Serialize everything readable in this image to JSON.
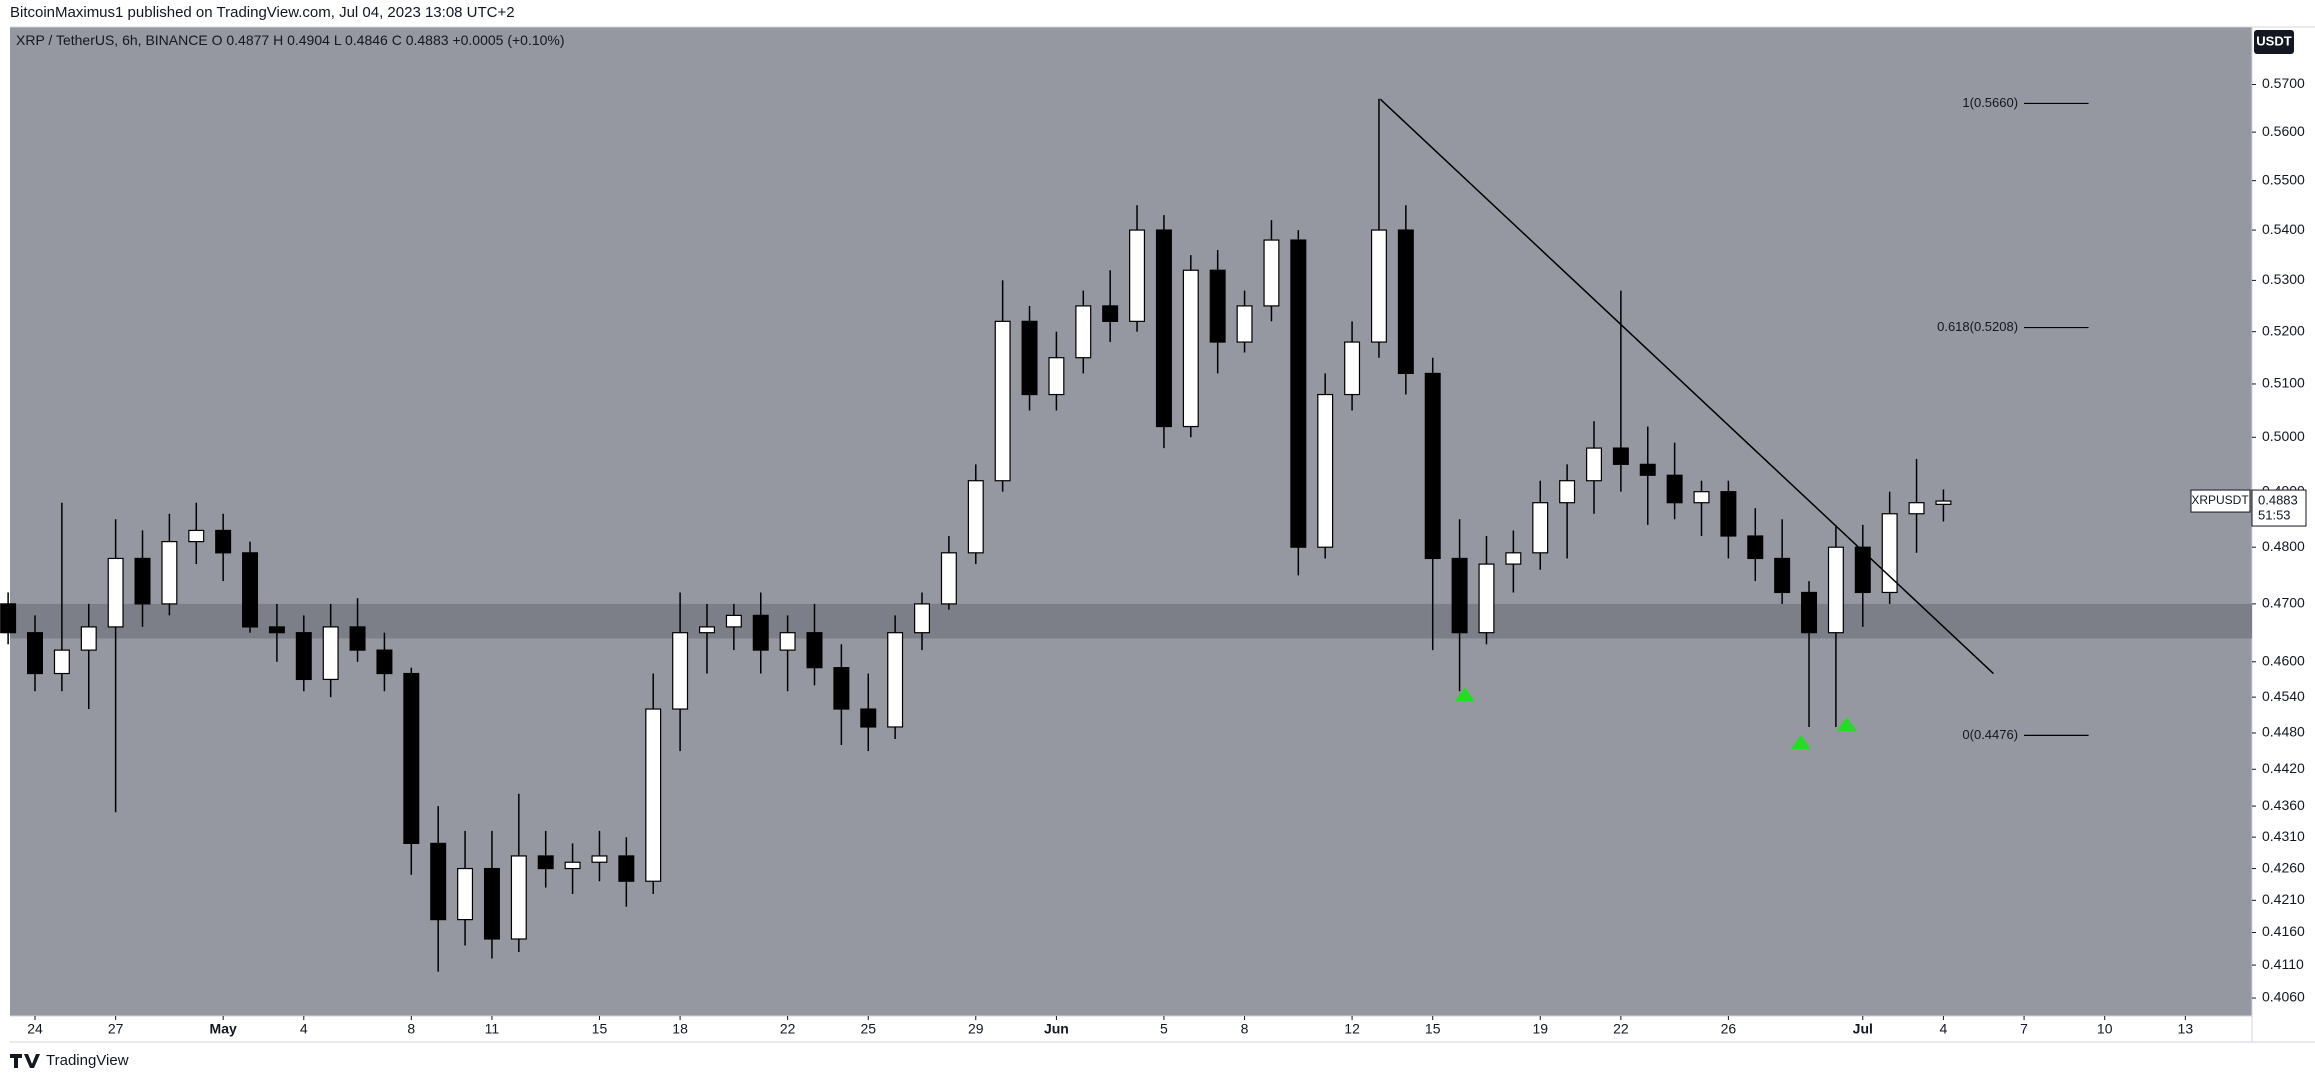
{
  "header": {
    "text": "BitcoinMaximus1 published on TradingView.com, Jul 04, 2023 13:08 UTC+2"
  },
  "footer": {
    "brand": "TradingView"
  },
  "chart_data": {
    "type": "candlestick",
    "title": "XRP / TetherUS, 6h, BINANCE",
    "ohlc_legend": [
      {
        "key": "O",
        "value": 0.4877
      },
      {
        "key": "H",
        "value": 0.4904
      },
      {
        "key": "L",
        "value": 0.4846
      },
      {
        "key": "C",
        "value": 0.4883
      }
    ],
    "change": "+0.0005 (+0.10%)",
    "currency": "USDT",
    "symbol": "XRPUSDT",
    "last_price": 0.4883,
    "countdown": "51:53",
    "log": true,
    "grid": false,
    "background": "#9598a1",
    "up_color": "#ffffff",
    "down_color": "#000000",
    "x": [
      -1,
      0,
      1,
      2,
      3,
      4,
      5,
      6,
      7,
      8,
      9,
      10,
      11,
      12,
      13,
      14,
      15,
      16,
      17,
      18,
      19,
      20,
      21,
      22,
      23,
      24,
      25,
      26,
      27,
      28,
      29,
      30,
      31,
      32,
      33,
      34,
      35,
      36,
      37,
      38,
      39,
      40,
      41,
      42,
      43,
      44,
      45,
      46,
      47,
      48,
      49,
      50,
      51,
      52,
      53,
      54,
      55,
      56,
      57,
      58,
      59,
      60,
      61,
      62,
      63,
      64,
      65,
      66,
      67,
      68,
      69,
      70,
      71
    ],
    "open": [
      0.47,
      0.465,
      0.458,
      0.462,
      0.466,
      0.478,
      0.47,
      0.481,
      0.483,
      0.479,
      0.466,
      0.465,
      0.457,
      0.466,
      0.462,
      0.458,
      0.43,
      0.418,
      0.426,
      0.415,
      0.428,
      0.426,
      0.427,
      0.428,
      0.424,
      0.452,
      0.465,
      0.466,
      0.468,
      0.462,
      0.465,
      0.459,
      0.452,
      0.449,
      0.465,
      0.47,
      0.479,
      0.492,
      0.522,
      0.508,
      0.515,
      0.525,
      0.522,
      0.54,
      0.502,
      0.532,
      0.518,
      0.525,
      0.538,
      0.48,
      0.508,
      0.518,
      0.54,
      0.512,
      0.478,
      0.465,
      0.477,
      0.479,
      0.488,
      0.492,
      0.498,
      0.495,
      0.493,
      0.488,
      0.49,
      0.482,
      0.478,
      0.472,
      0.465,
      0.48,
      0.472,
      0.486,
      0.4877
    ],
    "high": [
      0.472,
      0.468,
      0.488,
      0.47,
      0.485,
      0.483,
      0.486,
      0.488,
      0.486,
      0.481,
      0.47,
      0.468,
      0.47,
      0.471,
      0.465,
      0.459,
      0.436,
      0.432,
      0.432,
      0.438,
      0.432,
      0.43,
      0.432,
      0.431,
      0.458,
      0.472,
      0.47,
      0.47,
      0.472,
      0.468,
      0.47,
      0.463,
      0.458,
      0.468,
      0.472,
      0.482,
      0.495,
      0.53,
      0.525,
      0.52,
      0.528,
      0.532,
      0.545,
      0.543,
      0.535,
      0.536,
      0.528,
      0.542,
      0.54,
      0.512,
      0.522,
      0.567,
      0.545,
      0.515,
      0.485,
      0.482,
      0.483,
      0.492,
      0.495,
      0.503,
      0.528,
      0.502,
      0.499,
      0.492,
      0.492,
      0.487,
      0.485,
      0.474,
      0.484,
      0.484,
      0.49,
      0.496,
      0.4904
    ],
    "low": [
      0.463,
      0.455,
      0.455,
      0.452,
      0.435,
      0.466,
      0.468,
      0.477,
      0.474,
      0.465,
      0.46,
      0.455,
      0.454,
      0.46,
      0.455,
      0.425,
      0.41,
      0.414,
      0.412,
      0.413,
      0.423,
      0.422,
      0.424,
      0.42,
      0.422,
      0.445,
      0.458,
      0.462,
      0.458,
      0.455,
      0.456,
      0.446,
      0.445,
      0.447,
      0.462,
      0.469,
      0.477,
      0.49,
      0.505,
      0.505,
      0.512,
      0.518,
      0.52,
      0.498,
      0.5,
      0.512,
      0.516,
      0.522,
      0.475,
      0.478,
      0.505,
      0.515,
      0.508,
      0.462,
      0.455,
      0.463,
      0.472,
      0.476,
      0.478,
      0.486,
      0.49,
      0.484,
      0.485,
      0.482,
      0.478,
      0.474,
      0.47,
      0.449,
      0.449,
      0.466,
      0.47,
      0.479,
      0.4846
    ],
    "close": [
      0.465,
      0.458,
      0.462,
      0.466,
      0.478,
      0.47,
      0.481,
      0.483,
      0.479,
      0.466,
      0.465,
      0.457,
      0.466,
      0.462,
      0.458,
      0.43,
      0.418,
      0.426,
      0.415,
      0.428,
      0.426,
      0.427,
      0.428,
      0.424,
      0.452,
      0.465,
      0.466,
      0.468,
      0.462,
      0.465,
      0.459,
      0.452,
      0.449,
      0.465,
      0.47,
      0.479,
      0.492,
      0.522,
      0.508,
      0.515,
      0.525,
      0.522,
      0.54,
      0.502,
      0.532,
      0.518,
      0.525,
      0.538,
      0.48,
      0.508,
      0.518,
      0.54,
      0.512,
      0.478,
      0.465,
      0.477,
      0.479,
      0.488,
      0.492,
      0.498,
      0.495,
      0.493,
      0.488,
      0.49,
      0.482,
      0.478,
      0.472,
      0.465,
      0.48,
      0.472,
      0.486,
      0.488,
      0.4883
    ],
    "xlim": [
      -0.93,
      82.48
    ],
    "xticks": [
      {
        "value": 0,
        "label": "24"
      },
      {
        "value": 3,
        "label": "27"
      },
      {
        "value": 7,
        "label": "May"
      },
      {
        "value": 10,
        "label": "4"
      },
      {
        "value": 14,
        "label": "8"
      },
      {
        "value": 17,
        "label": "11"
      },
      {
        "value": 21,
        "label": "15"
      },
      {
        "value": 24,
        "label": "18"
      },
      {
        "value": 28,
        "label": "22"
      },
      {
        "value": 31,
        "label": "25"
      },
      {
        "value": 35,
        "label": "29"
      },
      {
        "value": 38,
        "label": "Jun"
      },
      {
        "value": 42,
        "label": "5"
      },
      {
        "value": 45,
        "label": "8"
      },
      {
        "value": 49,
        "label": "12"
      },
      {
        "value": 52,
        "label": "15"
      },
      {
        "value": 56,
        "label": "19"
      },
      {
        "value": 59,
        "label": "22"
      },
      {
        "value": 63,
        "label": "26"
      },
      {
        "value": 68,
        "label": "Jul"
      },
      {
        "value": 71,
        "label": "4"
      },
      {
        "value": 74,
        "label": "7"
      },
      {
        "value": 77,
        "label": "10"
      },
      {
        "value": 80,
        "label": "13"
      }
    ],
    "ylim": [
      0.4033,
      0.5823
    ],
    "yticks": [
      {
        "value": 0.406,
        "label": "0.4060"
      },
      {
        "value": 0.411,
        "label": "0.4110"
      },
      {
        "value": 0.416,
        "label": "0.4160"
      },
      {
        "value": 0.421,
        "label": "0.4210"
      },
      {
        "value": 0.426,
        "label": "0.4260"
      },
      {
        "value": 0.431,
        "label": "0.4310"
      },
      {
        "value": 0.436,
        "label": "0.4360"
      },
      {
        "value": 0.442,
        "label": "0.4420"
      },
      {
        "value": 0.448,
        "label": "0.4480"
      },
      {
        "value": 0.454,
        "label": "0.4540"
      },
      {
        "value": 0.46,
        "label": "0.4600"
      },
      {
        "value": 0.47,
        "label": "0.4700"
      },
      {
        "value": 0.48,
        "label": "0.4800"
      },
      {
        "value": 0.49,
        "label": "0.4900"
      },
      {
        "value": 0.5,
        "label": "0.5000"
      },
      {
        "value": 0.51,
        "label": "0.5100"
      },
      {
        "value": 0.52,
        "label": "0.5200"
      },
      {
        "value": 0.53,
        "label": "0.5300"
      },
      {
        "value": 0.54,
        "label": "0.5400"
      },
      {
        "value": 0.55,
        "label": "0.5500"
      },
      {
        "value": 0.56,
        "label": "0.5600"
      },
      {
        "value": 0.57,
        "label": "0.5700"
      }
    ],
    "zone": {
      "low": 0.464,
      "high": 0.47,
      "color": "#7c7f87"
    },
    "trendline": {
      "x": [
        50.05,
        72.86
      ],
      "y": [
        0.5669,
        0.458
      ]
    },
    "fib": {
      "x": [
        74,
        76.4
      ],
      "levels": [
        {
          "value": 0.566,
          "label": "1(0.5660)"
        },
        {
          "value": 0.5208,
          "label": "0.618(0.5208)"
        },
        {
          "value": 0.4476,
          "label": "0(0.4476)"
        }
      ]
    },
    "markers": {
      "color": "#22dd22",
      "x": [
        53.2,
        65.7,
        67.4
      ],
      "y": [
        0.4545,
        0.4465,
        0.4495
      ]
    }
  }
}
